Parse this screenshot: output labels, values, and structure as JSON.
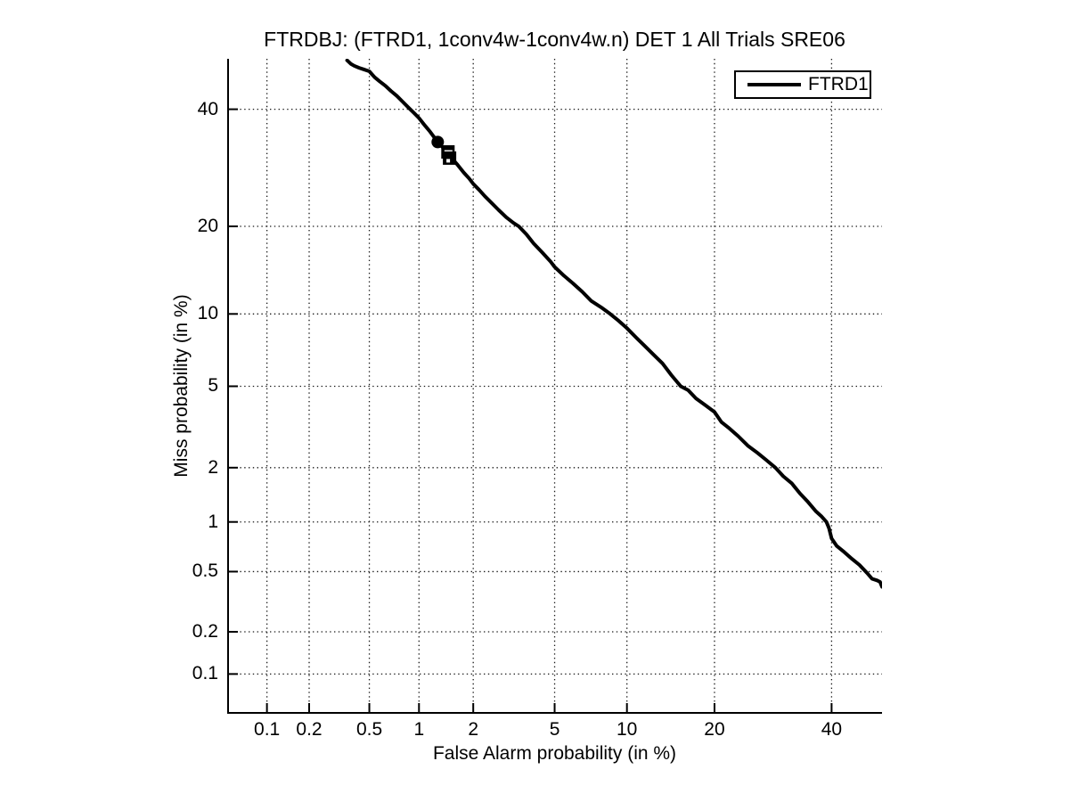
{
  "title": "FTRDBJ: (FTRD1, 1conv4w-1conv4w.n) DET 1 All Trials SRE06",
  "chart_data": {
    "type": "line",
    "subtype": "DET curve (Detection Error Tradeoff)",
    "title": "FTRDBJ: (FTRD1, 1conv4w-1conv4w.n) DET 1 All Trials SRE06",
    "xlabel": "False Alarm probability (in %)",
    "ylabel": "Miss probability (in %)",
    "axis_scale": "normal-deviate (probit) on both axes",
    "x_ticks_percent": [
      0.1,
      0.2,
      0.5,
      1,
      2,
      5,
      10,
      20,
      40
    ],
    "y_ticks_percent": [
      0.1,
      0.2,
      0.5,
      1,
      2,
      5,
      10,
      20,
      40
    ],
    "xlim_percent": [
      0.05,
      50
    ],
    "ylim_percent": [
      0.05,
      50
    ],
    "grid": "dotted, at every labeled tick, both directions",
    "legend": {
      "position": "top-right",
      "entries": [
        {
          "label": "FTRD1",
          "color": "#000000",
          "line_width": 4
        }
      ]
    },
    "colors": {
      "curve": "#000000",
      "axes": "#000000",
      "grid_dots": "#1a1a1a",
      "background": "#ffffff"
    },
    "series": [
      {
        "name": "FTRD1",
        "color": "#000000",
        "points_fa_miss_percent": [
          [
            0.36,
            49.7
          ],
          [
            0.38,
            49.0
          ],
          [
            0.4,
            48.6
          ],
          [
            0.43,
            48.2
          ],
          [
            0.46,
            47.9
          ],
          [
            0.5,
            47.5
          ],
          [
            0.54,
            46.3
          ],
          [
            0.58,
            45.5
          ],
          [
            0.63,
            44.6
          ],
          [
            0.68,
            43.6
          ],
          [
            0.74,
            42.6
          ],
          [
            0.8,
            41.5
          ],
          [
            0.87,
            40.3
          ],
          [
            0.94,
            39.2
          ],
          [
            1.0,
            38.3
          ],
          [
            1.08,
            36.9
          ],
          [
            1.16,
            35.7
          ],
          [
            1.24,
            34.4
          ],
          [
            1.28,
            33.8
          ],
          [
            1.35,
            33.0
          ],
          [
            1.42,
            32.3
          ],
          [
            1.47,
            31.7
          ],
          [
            1.55,
            30.7
          ],
          [
            1.65,
            29.7
          ],
          [
            1.78,
            28.4
          ],
          [
            1.9,
            27.4
          ],
          [
            2.0,
            26.5
          ],
          [
            2.15,
            25.5
          ],
          [
            2.3,
            24.5
          ],
          [
            2.5,
            23.4
          ],
          [
            2.7,
            22.4
          ],
          [
            2.95,
            21.3
          ],
          [
            3.2,
            20.5
          ],
          [
            3.4,
            20.0
          ],
          [
            3.7,
            18.9
          ],
          [
            4.0,
            17.7
          ],
          [
            4.4,
            16.5
          ],
          [
            4.8,
            15.4
          ],
          [
            5.0,
            14.8
          ],
          [
            5.5,
            13.8
          ],
          [
            6.0,
            13.0
          ],
          [
            6.6,
            12.1
          ],
          [
            7.2,
            11.2
          ],
          [
            7.9,
            10.6
          ],
          [
            8.6,
            10.0
          ],
          [
            9.3,
            9.4
          ],
          [
            10.0,
            8.8
          ],
          [
            10.8,
            8.1
          ],
          [
            11.6,
            7.5
          ],
          [
            12.5,
            6.9
          ],
          [
            13.5,
            6.3
          ],
          [
            14.5,
            5.6
          ],
          [
            15.6,
            5.0
          ],
          [
            16.5,
            4.8
          ],
          [
            17.5,
            4.4
          ],
          [
            18.7,
            4.1
          ],
          [
            20.0,
            3.8
          ],
          [
            21.0,
            3.4
          ],
          [
            22.0,
            3.2
          ],
          [
            23.5,
            2.9
          ],
          [
            25.0,
            2.6
          ],
          [
            26.5,
            2.4
          ],
          [
            28.0,
            2.2
          ],
          [
            29.6,
            2.0
          ],
          [
            31.0,
            1.8
          ],
          [
            32.5,
            1.65
          ],
          [
            34.0,
            1.45
          ],
          [
            35.5,
            1.3
          ],
          [
            37.0,
            1.15
          ],
          [
            38.0,
            1.08
          ],
          [
            39.0,
            1.0
          ],
          [
            39.5,
            0.92
          ],
          [
            40.0,
            0.8
          ],
          [
            41.0,
            0.72
          ],
          [
            42.5,
            0.66
          ],
          [
            44.0,
            0.6
          ],
          [
            45.5,
            0.55
          ],
          [
            47.0,
            0.49
          ],
          [
            48.0,
            0.45
          ],
          [
            49.0,
            0.44
          ],
          [
            49.6,
            0.43
          ],
          [
            50.0,
            0.4
          ]
        ]
      }
    ],
    "markers": [
      {
        "shape": "filled-circle",
        "fa_percent": 1.28,
        "miss_percent": 33.8
      },
      {
        "shape": "filled-square-white-dash",
        "fa_percent": 1.46,
        "miss_percent": 32.0
      },
      {
        "shape": "filled-square-white-dot",
        "fa_percent": 1.49,
        "miss_percent": 30.9
      }
    ]
  }
}
